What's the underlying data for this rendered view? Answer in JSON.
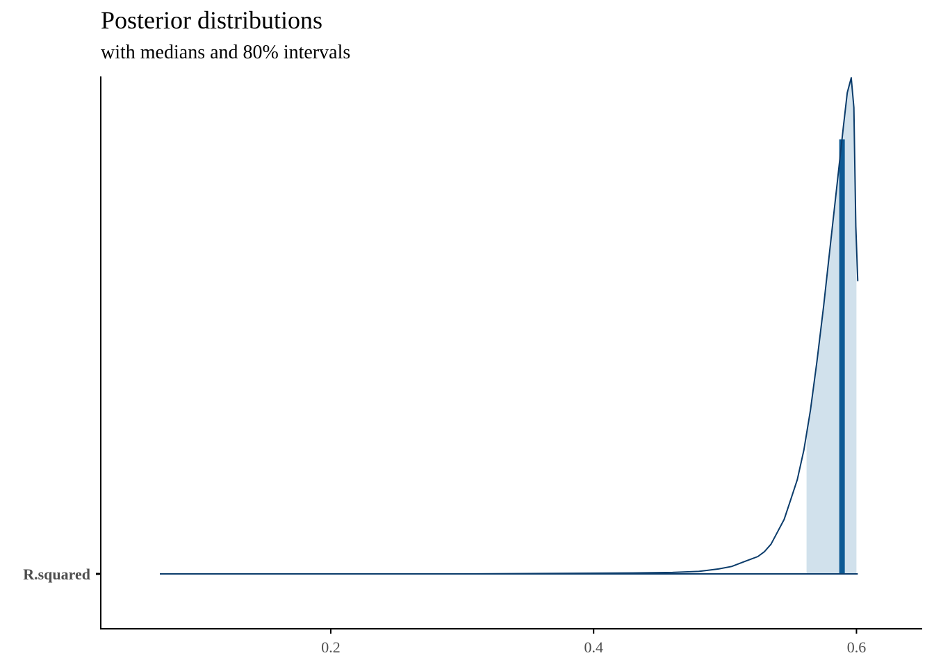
{
  "chart_data": {
    "type": "area",
    "title": "Posterior distributions",
    "subtitle": "with medians and 80% intervals",
    "xlabel": "",
    "ylabel": "",
    "parameters": [
      "R.squared"
    ],
    "xlim": [
      0.025,
      0.65
    ],
    "x_ticks": [
      0.2,
      0.4,
      0.6
    ],
    "x_tick_labels": [
      "0.2",
      "0.4",
      "0.6"
    ],
    "median": 0.589,
    "interval_80": [
      0.562,
      0.6
    ],
    "density": {
      "x": [
        0.07,
        0.3,
        0.43,
        0.46,
        0.48,
        0.495,
        0.505,
        0.515,
        0.52,
        0.525,
        0.53,
        0.535,
        0.54,
        0.545,
        0.55,
        0.555,
        0.56,
        0.565,
        0.57,
        0.575,
        0.58,
        0.585,
        0.59,
        0.593,
        0.596,
        0.598,
        0.5995,
        0.601
      ],
      "y": [
        0.0,
        0.0,
        0.002,
        0.003,
        0.005,
        0.01,
        0.015,
        0.025,
        0.03,
        0.035,
        0.045,
        0.06,
        0.085,
        0.11,
        0.15,
        0.19,
        0.25,
        0.33,
        0.43,
        0.54,
        0.66,
        0.78,
        0.9,
        0.97,
        1.0,
        0.94,
        0.7,
        0.59
      ]
    },
    "colors": {
      "line": "#0b3c6b",
      "median": "#0d5a94",
      "interval_fill": "#d1e1ec",
      "axis": "#000000"
    },
    "grid": false
  }
}
